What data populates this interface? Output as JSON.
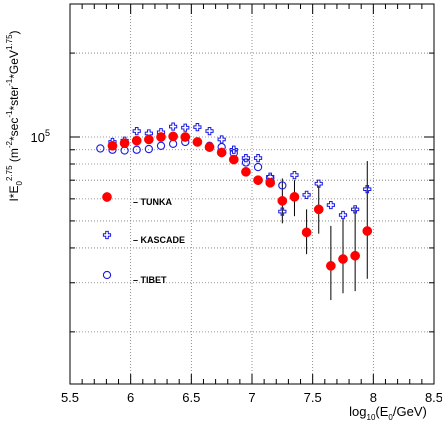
{
  "chart_data": {
    "type": "scatter",
    "title": "",
    "xlabel": "log10(E0/GeV)",
    "ylabel": "I*E0^2.75 (m^-2*sec^-1*ster^-1*GeV^1.75)",
    "x_ticks": [
      "5.5",
      "6",
      "6.5",
      "7",
      "7.5",
      "8",
      "8.5"
    ],
    "y_tick_label": "10^5",
    "xlim": [
      5.5,
      8.5
    ],
    "ylim": [
      13000,
      300000
    ],
    "yscale": "log",
    "grid": true,
    "legend_position": "left",
    "series": [
      {
        "name": "TUNKA",
        "marker": "filled-circle",
        "color": "#ff0000",
        "points": [
          {
            "x": 5.85,
            "y": 93000
          },
          {
            "x": 5.95,
            "y": 95000
          },
          {
            "x": 6.05,
            "y": 97000
          },
          {
            "x": 6.15,
            "y": 98000
          },
          {
            "x": 6.25,
            "y": 100000
          },
          {
            "x": 6.35,
            "y": 100500
          },
          {
            "x": 6.45,
            "y": 100000
          },
          {
            "x": 6.55,
            "y": 96000
          },
          {
            "x": 6.65,
            "y": 92000
          },
          {
            "x": 6.75,
            "y": 88000
          },
          {
            "x": 6.85,
            "y": 83000
          },
          {
            "x": 6.95,
            "y": 75000
          },
          {
            "x": 7.05,
            "y": 70000
          },
          {
            "x": 7.15,
            "y": 68500
          },
          {
            "x": 7.25,
            "y": 59000,
            "err": [
              49000,
              71000
            ]
          },
          {
            "x": 7.35,
            "y": 61000,
            "err": [
              52000,
              70000
            ]
          },
          {
            "x": 7.45,
            "y": 45500,
            "err": [
              38000,
              55000
            ]
          },
          {
            "x": 7.55,
            "y": 55000,
            "err": [
              45000,
              67000
            ]
          },
          {
            "x": 7.65,
            "y": 34500,
            "err": [
              26000,
              48000
            ]
          },
          {
            "x": 7.75,
            "y": 36500,
            "err": [
              27500,
              51000
            ]
          },
          {
            "x": 7.85,
            "y": 37500,
            "err": [
              28000,
              56000
            ]
          },
          {
            "x": 7.95,
            "y": 46000,
            "err": [
              31000,
              82000
            ]
          }
        ]
      },
      {
        "name": "KASCADE",
        "marker": "open-cross",
        "color": "#1a1ae6",
        "points": [
          {
            "x": 5.85,
            "y": 96000
          },
          {
            "x": 5.95,
            "y": 97000
          },
          {
            "x": 6.05,
            "y": 105000
          },
          {
            "x": 6.15,
            "y": 103000
          },
          {
            "x": 6.25,
            "y": 104000
          },
          {
            "x": 6.35,
            "y": 109000
          },
          {
            "x": 6.45,
            "y": 108000
          },
          {
            "x": 6.55,
            "y": 108500
          },
          {
            "x": 6.65,
            "y": 105000
          },
          {
            "x": 6.75,
            "y": 98000
          },
          {
            "x": 6.85,
            "y": 90000
          },
          {
            "x": 6.95,
            "y": 84000
          },
          {
            "x": 7.05,
            "y": 84000
          },
          {
            "x": 7.15,
            "y": 72000
          },
          {
            "x": 7.25,
            "y": 54000
          },
          {
            "x": 7.35,
            "y": 73000
          },
          {
            "x": 7.45,
            "y": 62000
          },
          {
            "x": 7.55,
            "y": 68000
          },
          {
            "x": 7.65,
            "y": 57000
          },
          {
            "x": 7.75,
            "y": 52500
          },
          {
            "x": 7.85,
            "y": 55000
          },
          {
            "x": 7.95,
            "y": 65000
          }
        ]
      },
      {
        "name": "TIBET",
        "marker": "open-circle",
        "color": "#1a1ae6",
        "points": [
          {
            "x": 5.75,
            "y": 91000
          },
          {
            "x": 5.85,
            "y": 90000
          },
          {
            "x": 5.95,
            "y": 89500
          },
          {
            "x": 6.05,
            "y": 90000
          },
          {
            "x": 6.15,
            "y": 90500
          },
          {
            "x": 6.25,
            "y": 93000
          },
          {
            "x": 6.35,
            "y": 94500
          },
          {
            "x": 6.45,
            "y": 96000
          },
          {
            "x": 6.55,
            "y": 96000
          },
          {
            "x": 6.65,
            "y": 93000
          },
          {
            "x": 6.75,
            "y": 92000
          },
          {
            "x": 6.85,
            "y": 87500
          },
          {
            "x": 6.95,
            "y": 81000
          },
          {
            "x": 7.05,
            "y": 78000
          },
          {
            "x": 7.15,
            "y": 71000
          },
          {
            "x": 7.25,
            "y": 67000
          }
        ]
      }
    ]
  }
}
